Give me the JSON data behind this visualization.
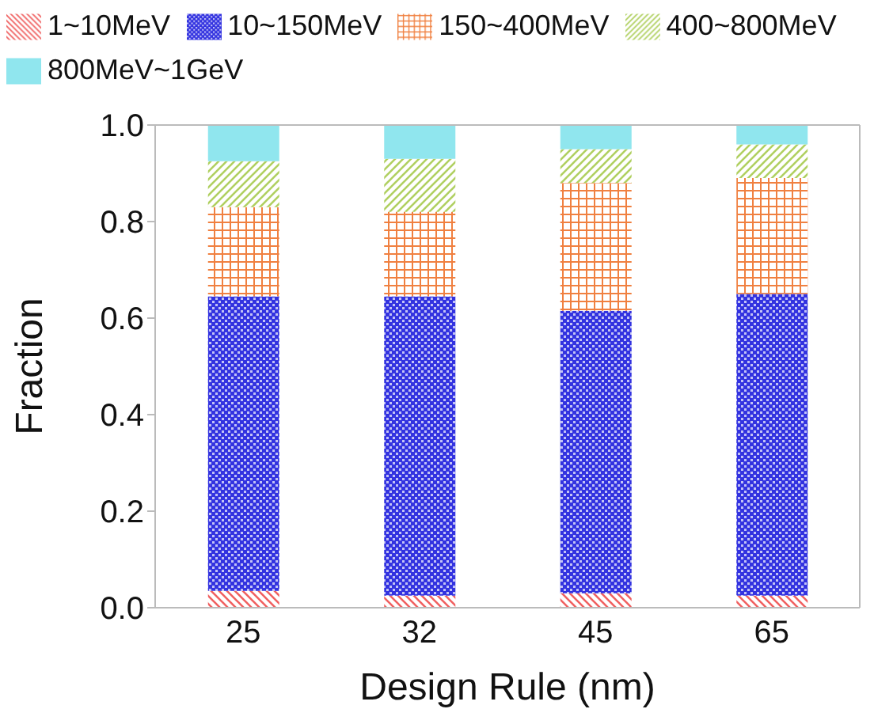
{
  "chart_data": {
    "type": "bar",
    "stacked": true,
    "xlabel": "Design Rule (nm)",
    "ylabel": "Fraction",
    "categories": [
      "25",
      "32",
      "45",
      "65"
    ],
    "series": [
      {
        "name": "1~10MeV",
        "color": "#f06060",
        "values": [
          0.035,
          0.025,
          0.03,
          0.025
        ]
      },
      {
        "name": "10~150MeV",
        "color": "#3333e0",
        "values": [
          0.61,
          0.62,
          0.585,
          0.625
        ]
      },
      {
        "name": "150~400MeV",
        "color": "#f08040",
        "values": [
          0.185,
          0.175,
          0.265,
          0.24
        ]
      },
      {
        "name": "400~800MeV",
        "color": "#b0d060",
        "values": [
          0.095,
          0.11,
          0.07,
          0.07
        ]
      },
      {
        "name": "800MeV~1GeV",
        "color": "#90e6ee",
        "values": [
          0.075,
          0.07,
          0.05,
          0.04
        ]
      }
    ],
    "ylim": [
      0,
      1
    ],
    "yticks": [
      {
        "value": 0,
        "label": "0.0"
      },
      {
        "value": 0.2,
        "label": "0.2"
      },
      {
        "value": 0.4,
        "label": "0.4"
      },
      {
        "value": 0.6,
        "label": "0.6"
      },
      {
        "value": 0.8,
        "label": "0.8"
      },
      {
        "value": 1,
        "label": "1.0"
      }
    ],
    "legend": "top",
    "grid": false
  }
}
